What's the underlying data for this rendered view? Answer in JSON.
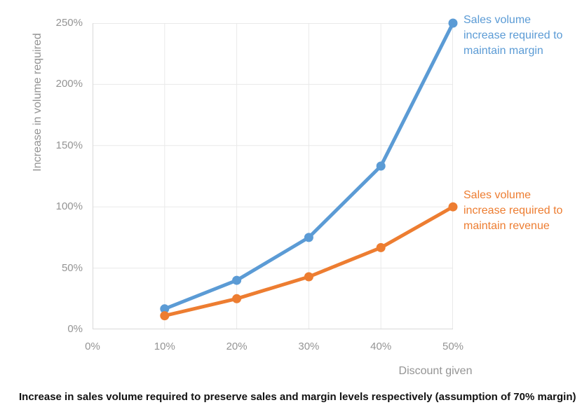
{
  "chart_data": {
    "type": "line",
    "x": [
      10,
      20,
      30,
      40,
      50
    ],
    "xlim": [
      0,
      50
    ],
    "ylim": [
      0,
      250
    ],
    "x_tick_labels": [
      "0%",
      "10%",
      "20%",
      "30%",
      "40%",
      "50%"
    ],
    "y_tick_labels": [
      "0%",
      "50%",
      "100%",
      "150%",
      "200%",
      "250%"
    ],
    "xlabel": "Discount given",
    "ylabel": "Increase in volume required",
    "grid": true,
    "legend_position": "right-annotations",
    "series": [
      {
        "name": "Sales volume increase required to maintain margin",
        "values": [
          16.7,
          40,
          75,
          133.3,
          250
        ],
        "color": "#5B9BD5"
      },
      {
        "name": "Sales volume increase required to maintain revenue",
        "values": [
          11.1,
          25,
          42.9,
          66.7,
          100
        ],
        "color": "#ED7D31"
      }
    ]
  },
  "annotations": [
    {
      "lines": [
        "Sales volume",
        "increase required to",
        "maintain margin"
      ],
      "color": "#5B9BD5"
    },
    {
      "lines": [
        "Sales volume",
        "increase required to",
        "maintain revenue"
      ],
      "color": "#ED7D31"
    }
  ],
  "caption": "Increase in sales volume required to preserve sales and margin levels respectively (assumption of 70% margin)",
  "colors": {
    "background": "#FFFFFF",
    "gridline": "#E9E9E9",
    "axis_line": "#D9D9D9",
    "tick_label": "#949494",
    "axis_title": "#949494",
    "caption_text": "#111111",
    "series_margin": "#5B9BD5",
    "series_revenue": "#ED7D31"
  }
}
